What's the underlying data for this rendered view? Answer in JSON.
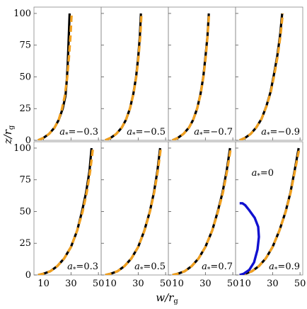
{
  "chart_data": {
    "type": "line",
    "xlabel": "w/r_g",
    "ylabel": "z/r_g",
    "xlim": [
      3,
      52
    ],
    "ylim": [
      0,
      105
    ],
    "xticks": [
      10,
      30,
      50
    ],
    "yticks": [
      0,
      25,
      50,
      75,
      100
    ],
    "grid": false,
    "layout": "2 rows x 4 columns, shared axes",
    "series_styles": {
      "simulation": {
        "color": "#000000",
        "style": "solid"
      },
      "fit": {
        "color": "#f0a020",
        "style": "dashed"
      },
      "spin_zero": {
        "color": "#1010d0",
        "style": "solid"
      }
    },
    "panels": [
      {
        "annotation": "a_* = −0.3",
        "simulation": {
          "x": [
            6,
            10,
            14,
            18,
            21,
            24,
            26,
            27,
            27.6,
            28.3,
            29
          ],
          "y": [
            0,
            2,
            5,
            10,
            16,
            25,
            35,
            48,
            60,
            80,
            100
          ]
        },
        "fit": {
          "x": [
            6,
            10,
            14,
            18,
            21,
            23.5,
            25.5,
            27.3,
            28.5,
            29.6,
            30.5
          ],
          "y": [
            0,
            2,
            5,
            10,
            16,
            25,
            35,
            50,
            65,
            82,
            100
          ]
        }
      },
      {
        "annotation": "a_* = −0.5",
        "simulation": {
          "x": [
            6,
            10,
            14,
            18,
            21,
            24,
            26.5,
            28.5,
            30,
            31.2,
            32
          ],
          "y": [
            0,
            2,
            5,
            10,
            16,
            25,
            37,
            50,
            65,
            82,
            100
          ]
        },
        "fit": {
          "x": [
            6,
            10,
            14,
            18,
            21,
            24,
            26.6,
            28.6,
            30.2,
            31.5,
            32.4
          ],
          "y": [
            0,
            2,
            5,
            10,
            16,
            25,
            37,
            50,
            65,
            82,
            100
          ]
        }
      },
      {
        "annotation": "a_* = −0.7",
        "simulation": {
          "x": [
            6,
            10,
            14,
            18,
            21,
            24,
            26.5,
            28.5,
            30,
            31.5,
            32.5
          ],
          "y": [
            0,
            2,
            5,
            10,
            16,
            25,
            37,
            50,
            65,
            82,
            100
          ]
        },
        "fit": {
          "x": [
            6,
            10,
            14,
            18,
            21,
            24,
            26.6,
            28.6,
            30.2,
            31.6,
            32.7
          ],
          "y": [
            0,
            2,
            5,
            10,
            16,
            25,
            37,
            50,
            65,
            82,
            100
          ]
        }
      },
      {
        "annotation": "a_* = −0.9",
        "simulation": {
          "x": [
            6,
            10,
            14,
            18,
            22,
            25.5,
            28.5,
            31,
            33.5,
            35.5,
            37
          ],
          "y": [
            0,
            2,
            5,
            10,
            17,
            27,
            38,
            52,
            67,
            83,
            100
          ]
        },
        "fit": {
          "x": [
            6,
            10,
            14,
            18,
            22,
            25.6,
            28.7,
            31.3,
            33.8,
            35.8,
            37.4
          ],
          "y": [
            0,
            2,
            5,
            10,
            17,
            27,
            38,
            52,
            67,
            83,
            100
          ]
        }
      },
      {
        "annotation": "a_* = 0.3",
        "simulation": {
          "x": [
            6,
            10,
            15,
            20,
            25,
            30,
            34.5,
            38,
            41,
            43.5,
            45
          ],
          "y": [
            0,
            1,
            3,
            7,
            13,
            22,
            35,
            50,
            65,
            82,
            100
          ]
        },
        "fit": {
          "x": [
            6,
            10,
            15,
            20,
            25,
            30,
            34.5,
            38.5,
            41.5,
            44,
            46
          ],
          "y": [
            0,
            1,
            3,
            7,
            13,
            22,
            35,
            50,
            65,
            82,
            100
          ]
        }
      },
      {
        "annotation": "a_* = 0.5",
        "simulation": {
          "x": [
            6,
            10,
            15,
            20,
            25,
            30,
            34.5,
            38.5,
            41.5,
            44,
            46
          ],
          "y": [
            0,
            1,
            3,
            7,
            13,
            22,
            35,
            50,
            65,
            82,
            100
          ]
        },
        "fit": {
          "x": [
            6,
            10,
            15,
            20,
            25,
            30,
            34.6,
            38.6,
            41.7,
            44.3,
            46.5
          ],
          "y": [
            0,
            1,
            3,
            7,
            13,
            22,
            35,
            50,
            65,
            82,
            100
          ]
        }
      },
      {
        "annotation": "a_* = 0.7",
        "simulation": {
          "x": [
            6,
            10,
            15,
            20,
            25,
            30,
            35,
            39,
            42.5,
            45.5,
            48
          ],
          "y": [
            0,
            1,
            3,
            7,
            13,
            22,
            35,
            50,
            65,
            82,
            100
          ]
        },
        "fit": {
          "x": [
            6,
            10,
            15,
            20,
            25,
            30,
            35,
            39.2,
            42.8,
            45.8,
            48.5
          ],
          "y": [
            0,
            1,
            3,
            7,
            13,
            22,
            35,
            50,
            65,
            82,
            100
          ]
        }
      },
      {
        "annotation": "a_* = 0.9",
        "annotation2": "a_* = 0",
        "simulation": {
          "x": [
            6,
            10,
            15,
            20,
            25,
            30,
            35,
            39.5,
            43,
            46,
            49
          ],
          "y": [
            0,
            1,
            3,
            7,
            13,
            22,
            35,
            50,
            65,
            82,
            100
          ]
        },
        "fit": {
          "x": [
            6,
            10,
            15,
            20,
            25,
            30,
            35,
            39.6,
            43.2,
            46.3,
            49.5
          ],
          "y": [
            0,
            1,
            3,
            7,
            13,
            22,
            35,
            50,
            65,
            82,
            100
          ]
        },
        "spin_zero": {
          "x": [
            6,
            9,
            13,
            16.5,
            19,
            20,
            19.5,
            17,
            13,
            10,
            8,
            6
          ],
          "y": [
            0,
            1,
            4,
            10,
            20,
            30,
            38,
            45,
            51,
            55,
            56.5,
            56.5
          ]
        }
      }
    ]
  }
}
